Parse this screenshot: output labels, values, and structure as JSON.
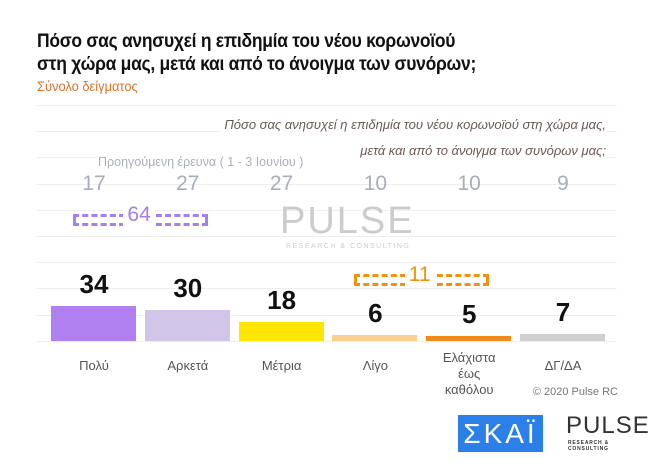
{
  "title_line1": "Πόσο σας ανησυχεί η επιδημία του νέου κορωνοϊού",
  "title_line2": "στη χώρα μας, μετά και από το άνοιγμα των συνόρων;",
  "subtitle": "Σύνολο δείγματος",
  "question_line1": "Πόσο σας ανησυχεί η επιδημία του νέου κορωνοϊού στη χώρα μας,",
  "question_line2": "μετά και από το άνοιγμα των συνόρων μας;",
  "previous_label": "Προηγούμενη έρευνα   ( 1 - 3 Ιουνίου )",
  "copyright": "© 2020 Pulse RC",
  "logos": {
    "skai": "ΣΚΑΪ",
    "pulse": "PULSE",
    "pulse_sub": "RESEARCH & CONSULTING"
  },
  "chart_data": {
    "type": "bar",
    "categories": [
      "Πολύ",
      "Αρκετά",
      "Μέτρια",
      "Λίγο",
      "Ελάχιστα έως καθόλου",
      "ΔΓ/ΔΑ"
    ],
    "values": [
      34,
      30,
      18,
      6,
      5,
      7
    ],
    "previous_values": [
      17,
      27,
      27,
      10,
      10,
      9
    ],
    "colors": [
      "#b07ff0",
      "#d0c4e8",
      "#ffe600",
      "#fbd08e",
      "#f28a1a",
      "#cfcfcf"
    ],
    "groups": [
      {
        "label": "64",
        "from": 0,
        "to": 1,
        "color": "#a47ff0"
      },
      {
        "label": "11",
        "from": 3,
        "to": 4,
        "color": "#f0920f"
      }
    ],
    "grid": true
  }
}
